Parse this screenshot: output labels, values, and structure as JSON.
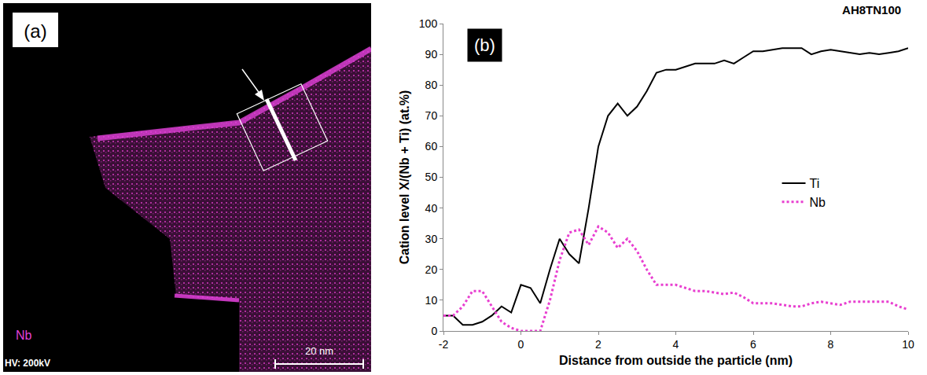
{
  "image_panel": {
    "label": "(a)",
    "element": "Nb",
    "voltage": "HV: 200kV",
    "scale_bar": "20 nm"
  },
  "chart_data": {
    "type": "line",
    "title": "AH8TN100",
    "panel_label": "(b)",
    "x_label": "Distance from outside the particle (nm)",
    "y_label": "Cation level X/(Nb + Ti) (at.%)",
    "x": [
      -2,
      -1.75,
      -1.5,
      -1.25,
      -1,
      -0.75,
      -0.5,
      -0.25,
      0,
      0.25,
      0.5,
      0.75,
      1,
      1.25,
      1.5,
      1.75,
      2,
      2.25,
      2.5,
      2.75,
      3,
      3.25,
      3.5,
      3.75,
      4,
      4.25,
      4.5,
      4.75,
      5,
      5.25,
      5.5,
      5.75,
      6,
      6.25,
      6.5,
      6.75,
      7,
      7.25,
      7.5,
      7.75,
      8,
      8.25,
      8.5,
      8.75,
      9,
      9.25,
      9.5,
      9.75,
      10
    ],
    "series": [
      {
        "name": "Ti",
        "color": "#000000",
        "line_style": "solid",
        "values": [
          5,
          5,
          2,
          2,
          3,
          5,
          8,
          6,
          15,
          14,
          9,
          20,
          30,
          25,
          22,
          40,
          60,
          70,
          74,
          70,
          73,
          78,
          84,
          85,
          85,
          86,
          87,
          87,
          87,
          88,
          87,
          89,
          91,
          91,
          91.5,
          92,
          92,
          92,
          90,
          91,
          91.5,
          91,
          90.5,
          90,
          90.5,
          90,
          90.5,
          91,
          92
        ]
      },
      {
        "name": "Nb",
        "color": "#e83fd0",
        "line_style": "dot",
        "values": [
          5,
          5,
          8,
          13,
          13,
          8,
          3,
          1,
          0,
          0,
          0,
          10,
          23,
          32,
          33,
          28,
          34,
          32,
          27,
          30,
          26,
          20,
          15,
          15,
          15,
          14,
          13,
          13,
          12.5,
          12,
          12.5,
          11,
          9,
          9,
          9,
          8.5,
          8,
          8,
          9,
          9.5,
          9,
          8.5,
          9.5,
          9.5,
          9.5,
          9.5,
          9.5,
          8,
          7
        ]
      }
    ],
    "xlim": [
      -2,
      10
    ],
    "xticks": [
      -2,
      0,
      2,
      4,
      6,
      8,
      10
    ],
    "ylim": [
      0,
      100
    ],
    "yticks": [
      0,
      10,
      20,
      30,
      40,
      50,
      60,
      70,
      80,
      90,
      100
    ],
    "grid": false,
    "legend": "right"
  }
}
